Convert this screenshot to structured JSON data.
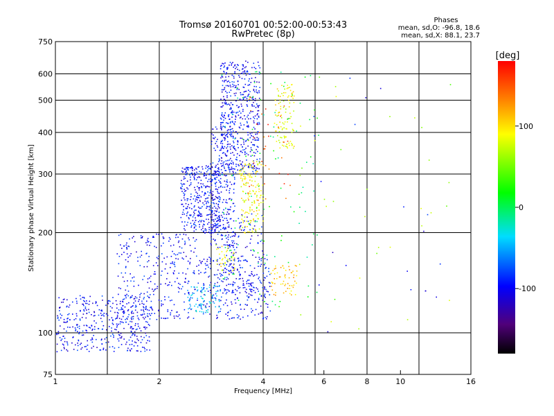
{
  "chart_data": {
    "type": "scatter",
    "title": "Tromsø 20160701 00:52:00-00:53:43",
    "subtitle": "RwPretec (8p)",
    "xlabel": "Frequency [MHz]",
    "ylabel": "Stationary phase Virtual Height [km]",
    "x_scale": "log",
    "y_scale": "log",
    "xlim": [
      1,
      16
    ],
    "ylim": [
      75,
      750
    ],
    "x_ticks": [
      {
        "value": 1,
        "label": "1"
      },
      {
        "value": 2,
        "label": "2"
      },
      {
        "value": 4,
        "label": "4"
      },
      {
        "value": 6,
        "label": "6"
      },
      {
        "value": 8,
        "label": "8"
      },
      {
        "value": 10,
        "label": "10"
      },
      {
        "value": 16,
        "label": "16"
      }
    ],
    "y_ticks": [
      {
        "value": 75,
        "label": "75"
      },
      {
        "value": 100,
        "label": "100"
      },
      {
        "value": 200,
        "label": "200"
      },
      {
        "value": 300,
        "label": "300"
      },
      {
        "value": 400,
        "label": "400"
      },
      {
        "value": 500,
        "label": "500"
      },
      {
        "value": 600,
        "label": "600"
      },
      {
        "value": 750,
        "label": "750"
      }
    ],
    "x_grid": [
      1.414,
      2,
      2.828,
      4,
      5.657,
      8,
      11.314
    ],
    "y_grid": [
      100,
      200,
      300,
      400,
      500,
      600
    ],
    "grid": true,
    "legend": {
      "title": "Phases",
      "entries": [
        "mean, sd,O:  -96.8, 18.6",
        "mean, sd,X:   88.1, 23.7"
      ],
      "placement": "top-right"
    },
    "colorbar": {
      "label": "[deg]",
      "range": [
        -180,
        180
      ],
      "ticks": [
        {
          "value": 100,
          "label": "100"
        },
        {
          "value": 0,
          "label": "0"
        },
        {
          "value": -100,
          "label": "-100"
        }
      ]
    },
    "clusters": [
      {
        "phase": -97,
        "x": [
          1.0,
          1.9
        ],
        "y": [
          88,
          130
        ],
        "count": 420
      },
      {
        "phase": -97,
        "x": [
          1.5,
          2.6
        ],
        "y": [
          110,
          200
        ],
        "count": 320
      },
      {
        "phase": -97,
        "x": [
          2.3,
          3.0
        ],
        "y": [
          200,
          320
        ],
        "count": 380
      },
      {
        "phase": -97,
        "x": [
          2.8,
          3.3
        ],
        "y": [
          180,
          420
        ],
        "count": 260
      },
      {
        "phase": -97,
        "x": [
          3.0,
          3.9
        ],
        "y": [
          300,
          660
        ],
        "count": 520
      },
      {
        "phase": -97,
        "x": [
          2.6,
          4.2
        ],
        "y": [
          110,
          170
        ],
        "count": 260
      },
      {
        "phase": -97,
        "x": [
          3.1,
          4.0
        ],
        "y": [
          130,
          230
        ],
        "count": 140
      },
      {
        "phase": -45,
        "x": [
          2.4,
          3.0
        ],
        "y": [
          115,
          140
        ],
        "count": 80
      },
      {
        "phase": 88,
        "x": [
          3.4,
          4.0
        ],
        "y": [
          200,
          330
        ],
        "count": 160
      },
      {
        "phase": 88,
        "x": [
          4.3,
          4.9
        ],
        "y": [
          360,
          560
        ],
        "count": 110
      },
      {
        "phase": 88,
        "x": [
          2.9,
          3.3
        ],
        "y": [
          150,
          185
        ],
        "count": 40
      },
      {
        "phase": 110,
        "x": [
          4.2,
          5.0
        ],
        "y": [
          130,
          160
        ],
        "count": 60
      },
      {
        "phase": 150,
        "x": [
          3.6,
          4.8
        ],
        "y": [
          250,
          520
        ],
        "count": 40
      },
      {
        "phase": 5,
        "x": [
          3.0,
          5.8
        ],
        "y": [
          120,
          620
        ],
        "count": 110
      },
      {
        "phase": 60,
        "x": [
          5.0,
          14.0
        ],
        "y": [
          100,
          680
        ],
        "count": 35
      },
      {
        "phase": -100,
        "x": [
          5.5,
          13.0
        ],
        "y": [
          95,
          620
        ],
        "count": 20
      }
    ]
  }
}
